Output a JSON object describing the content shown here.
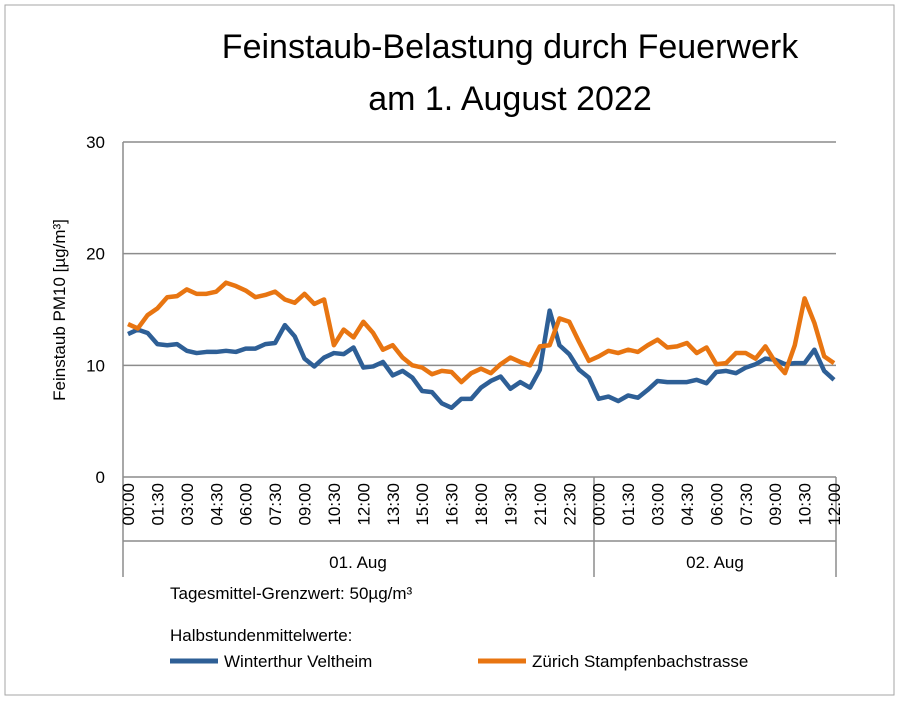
{
  "chart_data": {
    "type": "line",
    "title": [
      "Feinstaub-Belastung durch Feuerwerk",
      "am 1. August 2022"
    ],
    "ylabel": "Feinstaub PM10 [µg/m³]",
    "ylim": [
      0,
      30
    ],
    "yticks": [
      0,
      10,
      20,
      30
    ],
    "x_tick_labels": [
      "00:00",
      "01:30",
      "03:00",
      "04:30",
      "06:00",
      "07:30",
      "09:00",
      "10:30",
      "12:00",
      "13:30",
      "15:00",
      "16:30",
      "18:00",
      "19:30",
      "21:00",
      "22:30",
      "00:00",
      "01:30",
      "03:00",
      "04:30",
      "06:00",
      "07:30",
      "09:00",
      "10:30",
      "12:00"
    ],
    "groups": [
      "01. Aug",
      "02. Aug"
    ],
    "note": "Tagesmittel-Grenzwert: 50µg/m³",
    "legend_title": "Halbstundenmittelwerte:",
    "series": [
      {
        "name": "Winterthur Veltheim",
        "color": "#2e5f96",
        "values": [
          12.8,
          13.2,
          12.9,
          11.9,
          11.8,
          11.9,
          11.3,
          11.1,
          11.2,
          11.2,
          11.3,
          11.2,
          11.5,
          11.5,
          11.9,
          12.0,
          13.6,
          12.6,
          10.6,
          9.9,
          10.7,
          11.1,
          11.0,
          11.6,
          9.8,
          9.9,
          10.3,
          9.1,
          9.5,
          8.9,
          7.7,
          7.6,
          6.6,
          6.2,
          7.0,
          7.0,
          8.0,
          8.6,
          9.0,
          7.9,
          8.5,
          8.0,
          9.6,
          14.9,
          11.8,
          11.0,
          9.6,
          8.9,
          7.0,
          7.2,
          6.8,
          7.3,
          7.1,
          7.8,
          8.6,
          8.5,
          8.5,
          8.5,
          8.7,
          8.4,
          9.4,
          9.5,
          9.3,
          9.8,
          10.1,
          10.6,
          10.5,
          10.1,
          10.2,
          10.2,
          11.4,
          9.5,
          8.7
        ]
      },
      {
        "name": "Zürich Stampfenbachstrasse",
        "color": "#e87511",
        "values": [
          13.7,
          13.3,
          14.5,
          15.1,
          16.1,
          16.2,
          16.8,
          16.4,
          16.4,
          16.6,
          17.4,
          17.1,
          16.7,
          16.1,
          16.3,
          16.6,
          15.9,
          15.6,
          16.4,
          15.5,
          15.9,
          11.8,
          13.2,
          12.5,
          13.9,
          12.9,
          11.4,
          11.8,
          10.7,
          10.0,
          9.8,
          9.2,
          9.5,
          9.4,
          8.5,
          9.3,
          9.7,
          9.3,
          10.1,
          10.7,
          10.3,
          10.0,
          11.7,
          11.8,
          14.2,
          13.9,
          12.1,
          10.4,
          10.8,
          11.3,
          11.1,
          11.4,
          11.2,
          11.8,
          12.3,
          11.6,
          11.7,
          12.0,
          11.1,
          11.6,
          10.1,
          10.2,
          11.1,
          11.1,
          10.6,
          11.7,
          10.3,
          9.3,
          11.8,
          16.0,
          13.8,
          10.8,
          10.2
        ]
      }
    ]
  }
}
